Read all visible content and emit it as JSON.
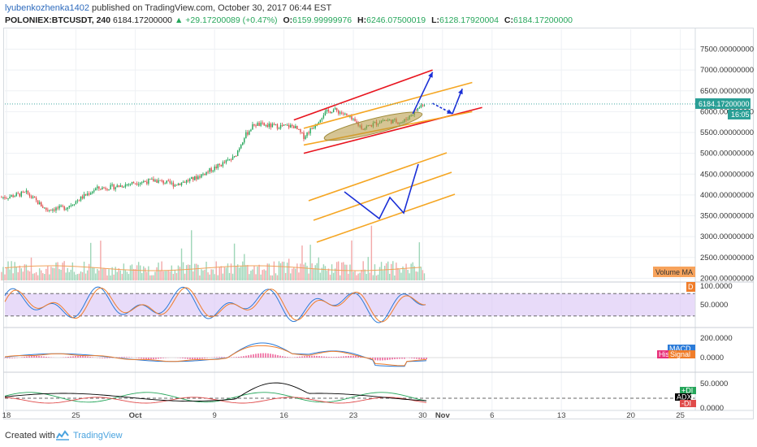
{
  "header": {
    "author": "lyubenkozhenka1402",
    "published_text": "published on TradingView.com, October 30, 2017 06:44 EST",
    "symbol": "POLONIEX:BTCUSDT, 240",
    "last": "6184.17200000",
    "change": "▲ +29.17200089 (+0.47%)",
    "o_label": "O:",
    "o": "6159.99999976",
    "h_label": "H:",
    "h": "6246.07500019",
    "l_label": "L:",
    "l": "6128.17920004",
    "c_label": "C:",
    "c": "6184.17200000"
  },
  "footer": {
    "created_with": "Created with",
    "brand": "TradingView"
  },
  "colors": {
    "up": "#26a65b",
    "down": "#e04b4b",
    "vol_up": "#9fd6b8",
    "vol_down": "#f3a9a9",
    "channel_red": "#e8151f",
    "channel_orange": "#f5a623",
    "arrow_blue": "#1a2fd6",
    "stoch_band": "#d8c3f5",
    "k_line": "#2b7bd8",
    "d_line": "#f07d2a",
    "macd_line": "#2b7bd8",
    "signal_line": "#f07d2a",
    "hist": "#e8317a",
    "adx": "#000000",
    "di_plus": "#26a65b",
    "di_minus": "#e04b4b",
    "last_price_tag": "#2a9f96",
    "volume_ma_tag": "#f7a35c"
  },
  "chart_data": {
    "type": "candlestick",
    "title": "POLONIEX:BTCUSDT, 240",
    "timeframe": "240",
    "y_axis_labels": [
      "7500.00000000",
      "7000.00000000",
      "6500.00000000",
      "6000.00000000",
      "5500.00000000",
      "5000.00000000",
      "4500.00000000",
      "4000.00000000",
      "3500.00000000",
      "3000.00000000",
      "2500.00000000",
      "2000.00000000"
    ],
    "ylim": [
      1950,
      7900
    ],
    "x_axis_labels": [
      "18",
      "25",
      "Oct",
      "9",
      "16",
      "23",
      "30",
      "Nov",
      "6",
      "13",
      "20",
      "25"
    ],
    "last_price_label": "6184.17200000",
    "countdown_label": "16:05",
    "close_path": [
      {
        "x": "Sep 18",
        "y": 3950
      },
      {
        "x": "Sep 20",
        "y": 4050
      },
      {
        "x": "Sep 22",
        "y": 3650
      },
      {
        "x": "Sep 24",
        "y": 3700
      },
      {
        "x": "Sep 27",
        "y": 4150
      },
      {
        "x": "Sep 29",
        "y": 4200
      },
      {
        "x": "Oct 1",
        "y": 4300
      },
      {
        "x": "Oct 3",
        "y": 4350
      },
      {
        "x": "Oct 5",
        "y": 4250
      },
      {
        "x": "Oct 7",
        "y": 4400
      },
      {
        "x": "Oct 9",
        "y": 4650
      },
      {
        "x": "Oct 11",
        "y": 4900
      },
      {
        "x": "Oct 12",
        "y": 5400
      },
      {
        "x": "Oct 13",
        "y": 5700
      },
      {
        "x": "Oct 15",
        "y": 5650
      },
      {
        "x": "Oct 17",
        "y": 5650
      },
      {
        "x": "Oct 18",
        "y": 5400
      },
      {
        "x": "Oct 19",
        "y": 5650
      },
      {
        "x": "Oct 20",
        "y": 5950
      },
      {
        "x": "Oct 21",
        "y": 6050
      },
      {
        "x": "Oct 22",
        "y": 5950
      },
      {
        "x": "Oct 24",
        "y": 5600
      },
      {
        "x": "Oct 26",
        "y": 5800
      },
      {
        "x": "Oct 28",
        "y": 5750
      },
      {
        "x": "Oct 30",
        "y": 6184
      }
    ],
    "drawings": [
      {
        "kind": "red channel upper",
        "from": {
          "x": "Oct 17",
          "y": 5800
        },
        "to": {
          "x": "Oct 31",
          "y": 7000
        }
      },
      {
        "kind": "red channel lower",
        "from": {
          "x": "Oct 18",
          "y": 5000
        },
        "to": {
          "x": "Nov 5",
          "y": 6100
        }
      },
      {
        "kind": "orange channel upper",
        "from": {
          "x": "Oct 18",
          "y": 5600
        },
        "to": {
          "x": "Nov 4",
          "y": 6700
        }
      },
      {
        "kind": "orange channel lower",
        "from": {
          "x": "Oct 18",
          "y": 5200
        },
        "to": {
          "x": "Nov 4",
          "y": 6000
        }
      },
      {
        "kind": "ellipse",
        "center": {
          "x": "Oct 25",
          "y": 5650
        }
      },
      {
        "kind": "arrow up",
        "from": {
          "x": "Oct 29",
          "y": 5950
        },
        "to": {
          "x": "Oct 31",
          "y": 6950
        }
      },
      {
        "kind": "arrow dashed",
        "from": {
          "x": "Oct 31",
          "y": 6200
        },
        "to": {
          "x": "Nov 2",
          "y": 5950
        }
      },
      {
        "kind": "arrow up",
        "from": {
          "x": "Nov 2",
          "y": 5950
        },
        "to": {
          "x": "Nov 3",
          "y": 6550
        }
      }
    ],
    "volume_ma_label": "Volume MA",
    "stoch": {
      "tick_labels": [
        "100.0000",
        "50.0000"
      ],
      "badge": "D",
      "band": [
        20,
        80
      ]
    },
    "macd": {
      "tick_labels": [
        "200.0000",
        "0.0000"
      ],
      "legend": [
        "MACD",
        "Histogram",
        "Signal"
      ],
      "legend_visible": [
        "MACD",
        "His",
        "Signal"
      ]
    },
    "adx": {
      "tick_labels": [
        "50.0000",
        "0.0000"
      ],
      "legend": [
        "+DI",
        "ADX",
        "-DI"
      ],
      "level": 20
    }
  }
}
